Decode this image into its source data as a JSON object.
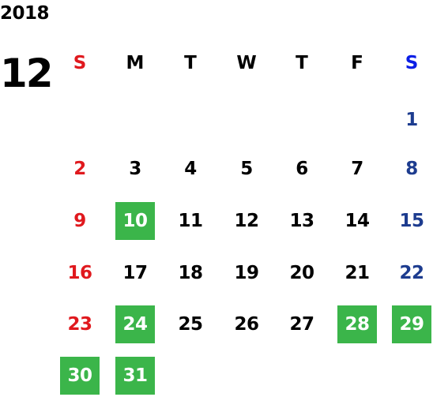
{
  "calendar": {
    "year": "2018",
    "month": "12",
    "weekdays": [
      "S",
      "M",
      "T",
      "W",
      "T",
      "F",
      "S"
    ],
    "first_weekday_index": 6,
    "days": [
      "1",
      "2",
      "3",
      "4",
      "5",
      "6",
      "7",
      "8",
      "9",
      "10",
      "11",
      "12",
      "13",
      "14",
      "15",
      "16",
      "17",
      "18",
      "19",
      "20",
      "21",
      "22",
      "23",
      "24",
      "25",
      "26",
      "27",
      "28",
      "29",
      "30",
      "31"
    ],
    "highlighted_days": [
      "10",
      "24",
      "28",
      "29",
      "30",
      "31"
    ],
    "colors": {
      "sunday": "#e0191e",
      "saturday_date": "#1d3c8f",
      "saturday_header": "#0a1ee6",
      "highlight_bg": "#3bb54a",
      "highlight_text": "#ffffff",
      "default_text": "#000000"
    }
  }
}
